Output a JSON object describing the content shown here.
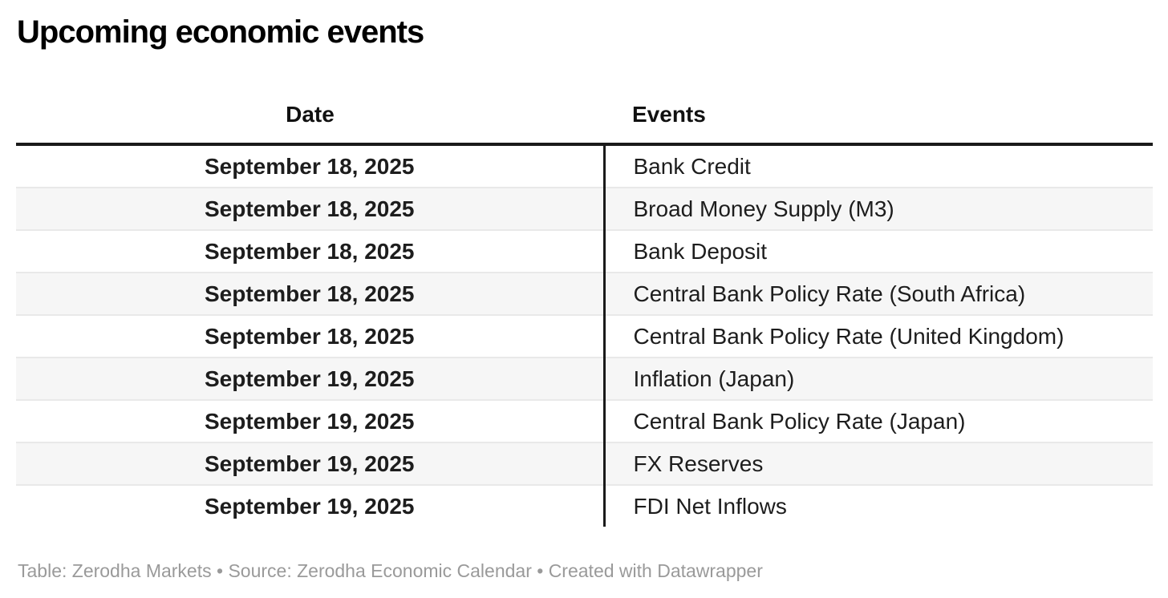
{
  "chart_data": {
    "type": "table",
    "title": "Upcoming economic events",
    "columns": [
      "Date",
      "Events"
    ],
    "rows": [
      [
        "September 18, 2025",
        "Bank Credit"
      ],
      [
        "September 18, 2025",
        "Broad Money Supply (M3)"
      ],
      [
        "September 18, 2025",
        "Bank Deposit"
      ],
      [
        "September 18, 2025",
        "Central Bank Policy Rate (South Africa)"
      ],
      [
        "September 18, 2025",
        "Central Bank Policy Rate (United Kingdom)"
      ],
      [
        "September 19, 2025",
        "Inflation (Japan)"
      ],
      [
        "September 19, 2025",
        "Central Bank Policy Rate (Japan)"
      ],
      [
        "September 19, 2025",
        "FX Reserves"
      ],
      [
        "September 19, 2025",
        "FDI Net Inflows"
      ]
    ],
    "footer": "Table: Zerodha Markets • Source: Zerodha Economic Calendar • Created with Datawrapper",
    "layout": {
      "date_column_align": "center",
      "events_column_align": "left",
      "striped": true,
      "stripe_rows": [
        2,
        4,
        6,
        8
      ]
    }
  },
  "colors": {
    "title_text": "#000000",
    "cell_text": "#1d1d1d",
    "header_rule": "#1a1a1a",
    "column_divider": "#1a1a1a",
    "row_border": "#e9e9e9",
    "stripe_background": "#f6f6f6",
    "footer_text": "#9a9a9a",
    "page_background": "#ffffff"
  }
}
